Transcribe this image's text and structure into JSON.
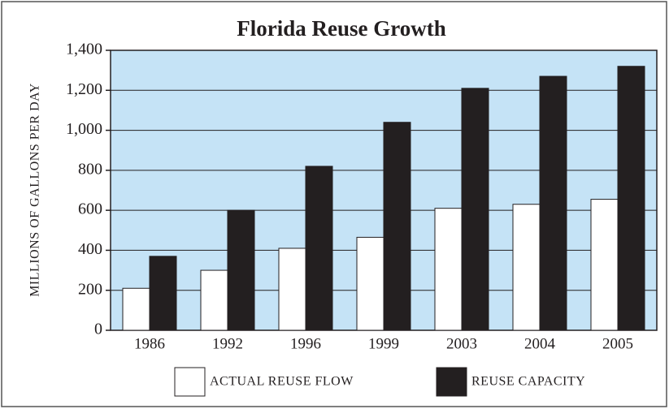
{
  "chart_data": {
    "type": "bar",
    "title": "Florida Reuse Growth",
    "y_label": "MILLIONS OF GALLONS PER DAY",
    "categories": [
      "1986",
      "1992",
      "1996",
      "1999",
      "2003",
      "2004",
      "2005"
    ],
    "series": [
      {
        "name": "ACTUAL REUSE FLOW",
        "color": "#ffffff",
        "values": [
          210,
          300,
          410,
          465,
          610,
          630,
          655
        ]
      },
      {
        "name": "REUSE CAPACITY",
        "color": "#231f20",
        "values": [
          370,
          600,
          820,
          1040,
          1210,
          1270,
          1320
        ]
      }
    ],
    "ylim": [
      0,
      1400
    ],
    "yticks": [
      0,
      200,
      400,
      600,
      800,
      {
        "value": 1000,
        "label": "1,000"
      },
      {
        "value": 1200,
        "label": "1,200"
      },
      {
        "value": 1400,
        "label": "1,400"
      }
    ],
    "grid": true,
    "background": "#c5e3f6"
  }
}
